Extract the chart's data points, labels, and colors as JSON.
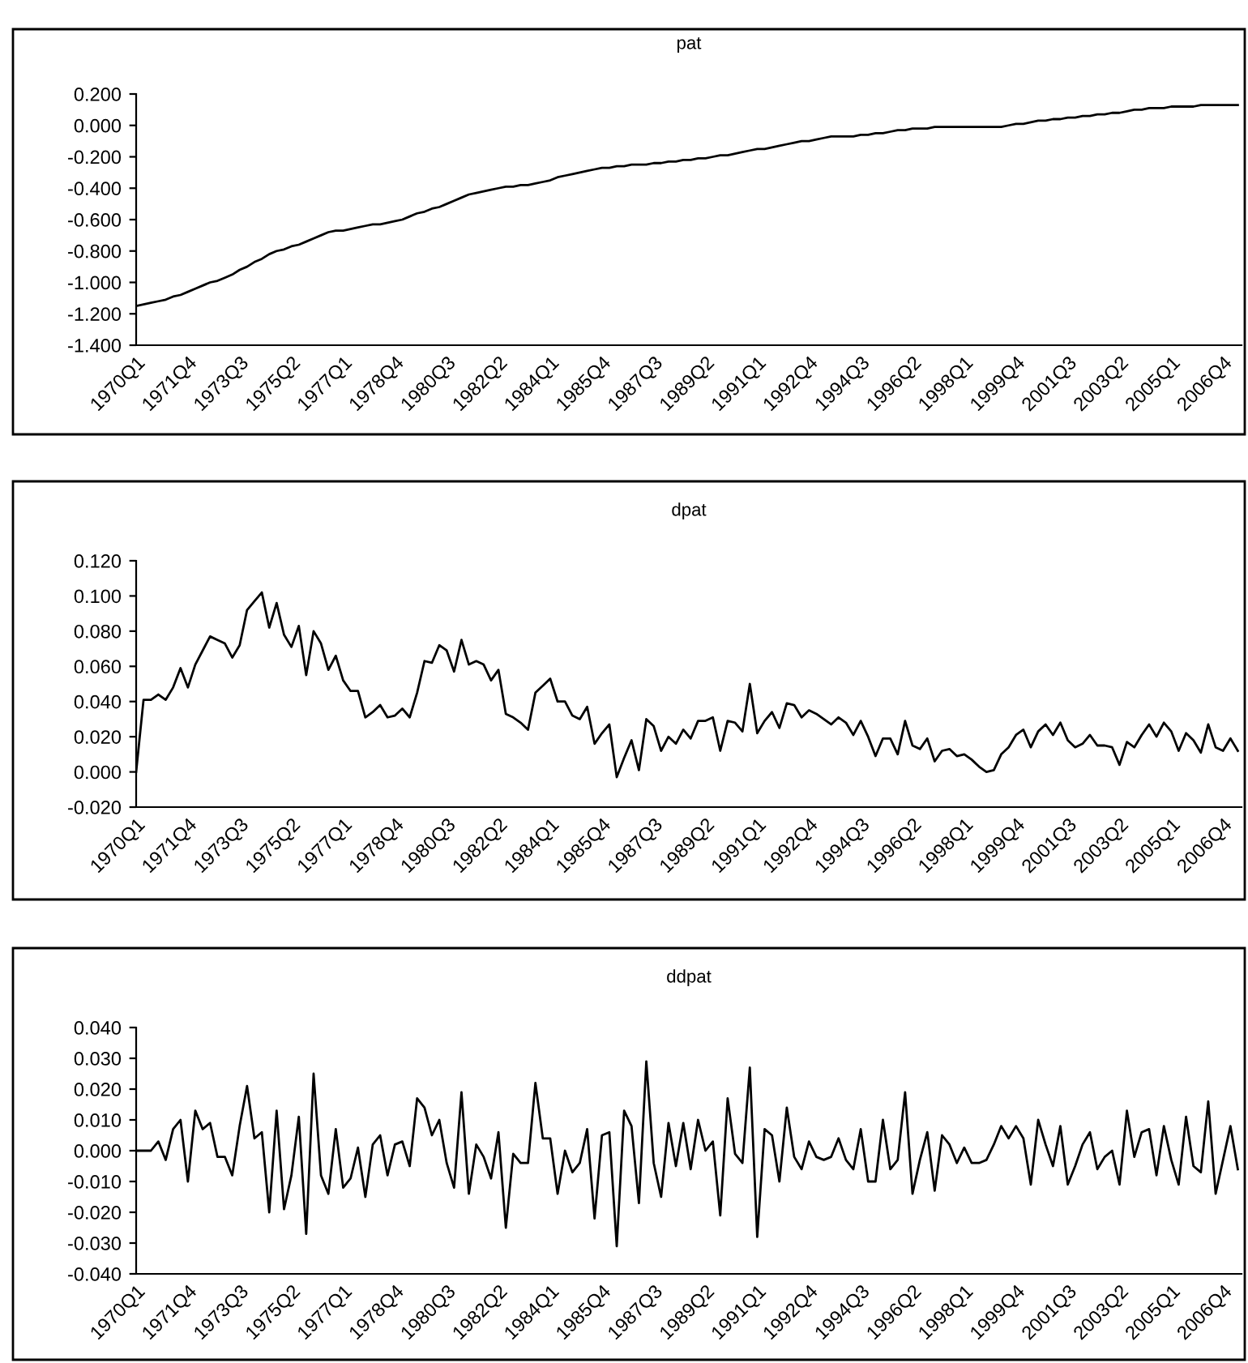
{
  "chart_data": [
    {
      "type": "line",
      "title": "pat",
      "ylim": [
        -1.4,
        0.2
      ],
      "grid": false,
      "categories": [
        "1970Q1",
        null,
        null,
        null,
        null,
        null,
        null,
        "1971Q4",
        null,
        null,
        null,
        null,
        null,
        null,
        "1973Q3",
        null,
        null,
        null,
        null,
        null,
        null,
        "1975Q2",
        null,
        null,
        null,
        null,
        null,
        null,
        "1977Q1",
        null,
        null,
        null,
        null,
        null,
        null,
        "1978Q4",
        null,
        null,
        null,
        null,
        null,
        null,
        "1980Q3",
        null,
        null,
        null,
        null,
        null,
        null,
        "1982Q2",
        null,
        null,
        null,
        null,
        null,
        null,
        "1984Q1",
        null,
        null,
        null,
        null,
        null,
        null,
        "1985Q4",
        null,
        null,
        null,
        null,
        null,
        null,
        "1987Q3",
        null,
        null,
        null,
        null,
        null,
        null,
        "1989Q2",
        null,
        null,
        null,
        null,
        null,
        null,
        "1991Q1",
        null,
        null,
        null,
        null,
        null,
        null,
        "1992Q4",
        null,
        null,
        null,
        null,
        null,
        null,
        "1994Q3",
        null,
        null,
        null,
        null,
        null,
        null,
        "1996Q2",
        null,
        null,
        null,
        null,
        null,
        null,
        "1998Q1",
        null,
        null,
        null,
        null,
        null,
        null,
        "1999Q4",
        null,
        null,
        null,
        null,
        null,
        null,
        "2001Q3",
        null,
        null,
        null,
        null,
        null,
        null,
        "2003Q2",
        null,
        null,
        null,
        null,
        null,
        null,
        "2005Q1",
        null,
        null,
        null,
        null,
        null,
        null,
        "2006Q4",
        null,
        null
      ],
      "yticks": [
        {
          "value": -1.4,
          "label": "-1.400"
        },
        {
          "value": -1.2,
          "label": "-1.200"
        },
        {
          "value": -1.0,
          "label": "-1.000"
        },
        {
          "value": -0.8,
          "label": "-0.800"
        },
        {
          "value": -0.6,
          "label": "-0.600"
        },
        {
          "value": -0.4,
          "label": "-0.400"
        },
        {
          "value": -0.2,
          "label": "-0.200"
        },
        {
          "value": 0.0,
          "label": "0.000"
        },
        {
          "value": 0.2,
          "label": "0.200"
        }
      ],
      "series": [
        {
          "color": "#000000",
          "values": [
            -1.15,
            -1.14,
            -1.13,
            -1.12,
            -1.11,
            -1.09,
            -1.08,
            -1.06,
            -1.04,
            -1.02,
            -1.0,
            -0.99,
            -0.97,
            -0.95,
            -0.92,
            -0.9,
            -0.87,
            -0.85,
            -0.82,
            -0.8,
            -0.79,
            -0.77,
            -0.76,
            -0.74,
            -0.72,
            -0.7,
            -0.68,
            -0.67,
            -0.67,
            -0.66,
            -0.65,
            -0.64,
            -0.63,
            -0.63,
            -0.62,
            -0.61,
            -0.6,
            -0.58,
            -0.56,
            -0.55,
            -0.53,
            -0.52,
            -0.5,
            -0.48,
            -0.46,
            -0.44,
            -0.43,
            -0.42,
            -0.41,
            -0.4,
            -0.39,
            -0.39,
            -0.38,
            -0.38,
            -0.37,
            -0.36,
            -0.35,
            -0.33,
            -0.32,
            -0.31,
            -0.3,
            -0.29,
            -0.28,
            -0.27,
            -0.27,
            -0.26,
            -0.26,
            -0.25,
            -0.25,
            -0.25,
            -0.24,
            -0.24,
            -0.23,
            -0.23,
            -0.22,
            -0.22,
            -0.21,
            -0.21,
            -0.2,
            -0.19,
            -0.19,
            -0.18,
            -0.17,
            -0.16,
            -0.15,
            -0.15,
            -0.14,
            -0.13,
            -0.12,
            -0.11,
            -0.1,
            -0.1,
            -0.09,
            -0.08,
            -0.07,
            -0.07,
            -0.07,
            -0.07,
            -0.06,
            -0.06,
            -0.05,
            -0.05,
            -0.04,
            -0.03,
            -0.03,
            -0.02,
            -0.02,
            -0.02,
            -0.01,
            -0.01,
            -0.01,
            -0.01,
            -0.01,
            -0.01,
            -0.01,
            -0.01,
            -0.01,
            -0.01,
            0.0,
            0.01,
            0.01,
            0.02,
            0.03,
            0.03,
            0.04,
            0.04,
            0.05,
            0.05,
            0.06,
            0.06,
            0.07,
            0.07,
            0.08,
            0.08,
            0.09,
            0.1,
            0.1,
            0.11,
            0.11,
            0.11,
            0.12,
            0.12,
            0.12,
            0.12,
            0.13,
            0.13,
            0.13,
            0.13,
            0.13,
            0.13
          ]
        }
      ]
    },
    {
      "type": "line",
      "title": "dpat",
      "ylim": [
        -0.02,
        0.12
      ],
      "grid": false,
      "categories": [
        "1970Q1",
        null,
        null,
        null,
        null,
        null,
        null,
        "1971Q4",
        null,
        null,
        null,
        null,
        null,
        null,
        "1973Q3",
        null,
        null,
        null,
        null,
        null,
        null,
        "1975Q2",
        null,
        null,
        null,
        null,
        null,
        null,
        "1977Q1",
        null,
        null,
        null,
        null,
        null,
        null,
        "1978Q4",
        null,
        null,
        null,
        null,
        null,
        null,
        "1980Q3",
        null,
        null,
        null,
        null,
        null,
        null,
        "1982Q2",
        null,
        null,
        null,
        null,
        null,
        null,
        "1984Q1",
        null,
        null,
        null,
        null,
        null,
        null,
        "1985Q4",
        null,
        null,
        null,
        null,
        null,
        null,
        "1987Q3",
        null,
        null,
        null,
        null,
        null,
        null,
        "1989Q2",
        null,
        null,
        null,
        null,
        null,
        null,
        "1991Q1",
        null,
        null,
        null,
        null,
        null,
        null,
        "1992Q4",
        null,
        null,
        null,
        null,
        null,
        null,
        "1994Q3",
        null,
        null,
        null,
        null,
        null,
        null,
        "1996Q2",
        null,
        null,
        null,
        null,
        null,
        null,
        "1998Q1",
        null,
        null,
        null,
        null,
        null,
        null,
        "1999Q4",
        null,
        null,
        null,
        null,
        null,
        null,
        "2001Q3",
        null,
        null,
        null,
        null,
        null,
        null,
        "2003Q2",
        null,
        null,
        null,
        null,
        null,
        null,
        "2005Q1",
        null,
        null,
        null,
        null,
        null,
        null,
        "2006Q4",
        null,
        null
      ],
      "yticks": [
        {
          "value": -0.02,
          "label": "-0.020"
        },
        {
          "value": 0.0,
          "label": "0.000"
        },
        {
          "value": 0.02,
          "label": "0.020"
        },
        {
          "value": 0.04,
          "label": "0.040"
        },
        {
          "value": 0.06,
          "label": "0.060"
        },
        {
          "value": 0.08,
          "label": "0.080"
        },
        {
          "value": 0.1,
          "label": "0.100"
        },
        {
          "value": 0.12,
          "label": "0.120"
        }
      ],
      "series": [
        {
          "color": "#000000",
          "values": [
            0.0,
            0.041,
            0.041,
            0.044,
            0.041,
            0.048,
            0.059,
            0.048,
            0.061,
            0.069,
            0.077,
            0.075,
            0.073,
            0.065,
            0.072,
            0.092,
            0.097,
            0.102,
            0.082,
            0.096,
            0.078,
            0.071,
            0.083,
            0.055,
            0.08,
            0.073,
            0.058,
            0.066,
            0.052,
            0.046,
            0.046,
            0.031,
            0.034,
            0.038,
            0.031,
            0.032,
            0.036,
            0.031,
            0.045,
            0.063,
            0.062,
            0.072,
            0.069,
            0.057,
            0.075,
            0.061,
            0.063,
            0.061,
            0.052,
            0.058,
            0.033,
            0.031,
            0.028,
            0.024,
            0.045,
            0.049,
            0.053,
            0.04,
            0.04,
            0.032,
            0.03,
            0.037,
            0.016,
            0.022,
            0.027,
            -0.003,
            0.008,
            0.018,
            0.001,
            0.03,
            0.026,
            0.012,
            0.02,
            0.016,
            0.024,
            0.019,
            0.029,
            0.029,
            0.031,
            0.012,
            0.029,
            0.028,
            0.023,
            0.05,
            0.022,
            0.029,
            0.034,
            0.025,
            0.039,
            0.038,
            0.031,
            0.035,
            0.033,
            0.03,
            0.027,
            0.031,
            0.028,
            0.021,
            0.029,
            0.02,
            0.009,
            0.019,
            0.019,
            0.01,
            0.029,
            0.015,
            0.013,
            0.019,
            0.006,
            0.012,
            0.013,
            0.009,
            0.01,
            0.007,
            0.003,
            0.0,
            0.001,
            0.01,
            0.014,
            0.021,
            0.024,
            0.014,
            0.023,
            0.027,
            0.021,
            0.028,
            0.018,
            0.014,
            0.016,
            0.021,
            0.015,
            0.015,
            0.014,
            0.004,
            0.017,
            0.014,
            0.021,
            0.027,
            0.02,
            0.028,
            0.023,
            0.012,
            0.022,
            0.018,
            0.011,
            0.027,
            0.014,
            0.012,
            0.019,
            0.012
          ]
        }
      ]
    },
    {
      "type": "line",
      "title": "ddpat",
      "ylim": [
        -0.04,
        0.04
      ],
      "grid": false,
      "categories": [
        "1970Q1",
        null,
        null,
        null,
        null,
        null,
        null,
        "1971Q4",
        null,
        null,
        null,
        null,
        null,
        null,
        "1973Q3",
        null,
        null,
        null,
        null,
        null,
        null,
        "1975Q2",
        null,
        null,
        null,
        null,
        null,
        null,
        "1977Q1",
        null,
        null,
        null,
        null,
        null,
        null,
        "1978Q4",
        null,
        null,
        null,
        null,
        null,
        null,
        "1980Q3",
        null,
        null,
        null,
        null,
        null,
        null,
        "1982Q2",
        null,
        null,
        null,
        null,
        null,
        null,
        "1984Q1",
        null,
        null,
        null,
        null,
        null,
        null,
        "1985Q4",
        null,
        null,
        null,
        null,
        null,
        null,
        "1987Q3",
        null,
        null,
        null,
        null,
        null,
        null,
        "1989Q2",
        null,
        null,
        null,
        null,
        null,
        null,
        "1991Q1",
        null,
        null,
        null,
        null,
        null,
        null,
        "1992Q4",
        null,
        null,
        null,
        null,
        null,
        null,
        "1994Q3",
        null,
        null,
        null,
        null,
        null,
        null,
        "1996Q2",
        null,
        null,
        null,
        null,
        null,
        null,
        "1998Q1",
        null,
        null,
        null,
        null,
        null,
        null,
        "1999Q4",
        null,
        null,
        null,
        null,
        null,
        null,
        "2001Q3",
        null,
        null,
        null,
        null,
        null,
        null,
        "2003Q2",
        null,
        null,
        null,
        null,
        null,
        null,
        "2005Q1",
        null,
        null,
        null,
        null,
        null,
        null,
        "2006Q4",
        null,
        null
      ],
      "yticks": [
        {
          "value": -0.04,
          "label": "-0.040"
        },
        {
          "value": -0.03,
          "label": "-0.030"
        },
        {
          "value": -0.02,
          "label": "-0.020"
        },
        {
          "value": -0.01,
          "label": "-0.010"
        },
        {
          "value": 0.0,
          "label": "0.000"
        },
        {
          "value": 0.01,
          "label": "0.010"
        },
        {
          "value": 0.02,
          "label": "0.020"
        },
        {
          "value": 0.03,
          "label": "0.030"
        },
        {
          "value": 0.04,
          "label": "0.040"
        }
      ],
      "series": [
        {
          "color": "#000000",
          "values": [
            0.0,
            0.0,
            0.0,
            0.003,
            -0.003,
            0.007,
            0.01,
            -0.01,
            0.013,
            0.007,
            0.009,
            -0.002,
            -0.002,
            -0.008,
            0.008,
            0.021,
            0.004,
            0.006,
            -0.02,
            0.013,
            -0.019,
            -0.008,
            0.011,
            -0.027,
            0.025,
            -0.008,
            -0.014,
            0.007,
            -0.012,
            -0.009,
            0.001,
            -0.015,
            0.002,
            0.005,
            -0.008,
            0.002,
            0.003,
            -0.005,
            0.017,
            0.014,
            0.005,
            0.01,
            -0.004,
            -0.012,
            0.019,
            -0.014,
            0.002,
            -0.002,
            -0.009,
            0.006,
            -0.025,
            -0.001,
            -0.004,
            -0.004,
            0.022,
            0.004,
            0.004,
            -0.014,
            0.0,
            -0.007,
            -0.004,
            0.007,
            -0.022,
            0.005,
            0.006,
            -0.031,
            0.013,
            0.008,
            -0.017,
            0.029,
            -0.004,
            -0.015,
            0.009,
            -0.005,
            0.009,
            -0.006,
            0.01,
            0.0,
            0.003,
            -0.021,
            0.017,
            -0.001,
            -0.004,
            0.027,
            -0.028,
            0.007,
            0.005,
            -0.01,
            0.014,
            -0.002,
            -0.006,
            0.003,
            -0.002,
            -0.003,
            -0.002,
            0.004,
            -0.003,
            -0.006,
            0.007,
            -0.01,
            -0.01,
            0.01,
            -0.006,
            -0.003,
            0.019,
            -0.014,
            -0.003,
            0.006,
            -0.013,
            0.005,
            0.002,
            -0.004,
            0.001,
            -0.004,
            -0.004,
            -0.003,
            0.002,
            0.008,
            0.004,
            0.008,
            0.004,
            -0.011,
            0.01,
            0.002,
            -0.005,
            0.008,
            -0.011,
            -0.005,
            0.002,
            0.006,
            -0.006,
            -0.002,
            0.0,
            -0.011,
            0.013,
            -0.002,
            0.006,
            0.007,
            -0.008,
            0.008,
            -0.003,
            -0.011,
            0.011,
            -0.005,
            -0.007,
            0.016,
            -0.014,
            -0.003,
            0.008,
            -0.006
          ]
        }
      ]
    }
  ]
}
